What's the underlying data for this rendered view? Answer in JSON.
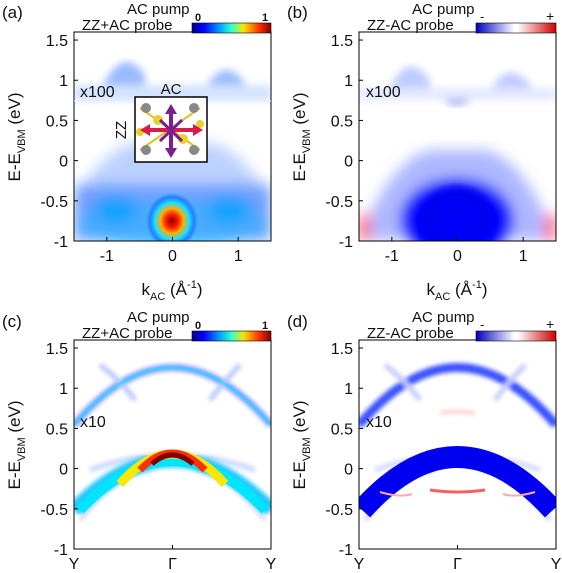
{
  "figure": {
    "panels": [
      {
        "id": "a",
        "label": "(a)",
        "title_line1": "AC pump",
        "title_line2": "ZZ+AC probe",
        "scale_type": "magnitude",
        "colorbar_min": "0",
        "colorbar_max": "1",
        "multiplier": "x100",
        "inset": {
          "ac_label": "AC",
          "zz_label": "ZZ"
        },
        "ylabel_main": "E-E",
        "ylabel_sub": "VBM",
        "ylabel_unit": " (eV)",
        "xlabel_main": "k",
        "xlabel_sub": "AC",
        "xlabel_unit_open": " (Å",
        "xlabel_unit_exp": "-1",
        "xlabel_unit_close": ")"
      },
      {
        "id": "b",
        "label": "(b)",
        "title_line1": "AC pump",
        "title_line2": "ZZ-AC probe",
        "scale_type": "difference",
        "colorbar_min": "-",
        "colorbar_max": "+",
        "multiplier": "x100",
        "ylabel_main": "E-E",
        "ylabel_sub": "VBM",
        "ylabel_unit": " (eV)",
        "xlabel_main": "k",
        "xlabel_sub": "AC",
        "xlabel_unit_open": " (Å",
        "xlabel_unit_exp": "-1",
        "xlabel_unit_close": ")"
      },
      {
        "id": "c",
        "label": "(c)",
        "title_line1": "AC pump",
        "title_line2": "ZZ+AC probe",
        "scale_type": "magnitude",
        "colorbar_min": "0",
        "colorbar_max": "1",
        "multiplier": "x10",
        "ylabel_main": "E-E",
        "ylabel_sub": "VBM",
        "ylabel_unit": " (eV)"
      },
      {
        "id": "d",
        "label": "(d)",
        "title_line1": "AC pump",
        "title_line2": "ZZ-AC probe",
        "scale_type": "difference",
        "colorbar_min": "-",
        "colorbar_max": "+",
        "multiplier": "x10",
        "ylabel_main": "E-E",
        "ylabel_sub": "VBM",
        "ylabel_unit": " (eV)"
      }
    ],
    "colors": {
      "jet_dark_blue": "#00008f",
      "jet_blue": "#0050ff",
      "jet_cyan": "#00d8ff",
      "jet_yellow": "#f8e800",
      "jet_red": "#e60000",
      "jet_dark_red": "#800000",
      "diff_blue": "#0000ee",
      "diff_red": "#ee2222",
      "arrow_red": "#d81b4a",
      "arrow_purple": "#7b1f8f"
    }
  },
  "chart_data": [
    {
      "panel": "a",
      "type": "heatmap",
      "x_ticks": [
        "-1",
        "0",
        "1"
      ],
      "x_values": [
        -1,
        0,
        1
      ],
      "xlim": [
        -1.5,
        1.5
      ],
      "y_ticks": [
        "-1",
        "-0.5",
        "0",
        "0.5",
        "1",
        "1.5"
      ],
      "y_values": [
        -1,
        -0.5,
        0,
        0.5,
        1,
        1.5
      ],
      "ylim": [
        -1,
        1.6
      ],
      "scaled_region_start": 0.78
    },
    {
      "panel": "b",
      "type": "heatmap",
      "x_ticks": [
        "-1",
        "0",
        "1"
      ],
      "x_values": [
        -1,
        0,
        1
      ],
      "xlim": [
        -1.5,
        1.5
      ],
      "y_ticks": [
        "-1",
        "-0.5",
        "0",
        "0.5",
        "1",
        "1.5"
      ],
      "y_values": [
        -1,
        -0.5,
        0,
        0.5,
        1,
        1.5
      ],
      "ylim": [
        -1,
        1.6
      ],
      "scaled_region_start": 0.78
    },
    {
      "panel": "c",
      "type": "heatmap",
      "x_ticks": [
        "Y",
        "Γ",
        "Y"
      ],
      "x_values": [
        -1,
        0,
        1
      ],
      "xlim": [
        -1,
        1
      ],
      "y_ticks": [
        "-1",
        "-0.5",
        "0",
        "0.5",
        "1",
        "1.5"
      ],
      "y_values": [
        -1,
        -0.5,
        0,
        0.5,
        1,
        1.5
      ],
      "ylim": [
        -1,
        1.6
      ]
    },
    {
      "panel": "d",
      "type": "heatmap",
      "x_ticks": [
        "Y",
        "Γ",
        "Y"
      ],
      "x_values": [
        -1,
        0,
        1
      ],
      "xlim": [
        -1,
        1
      ],
      "y_ticks": [
        "-1",
        "-0.5",
        "0",
        "0.5",
        "1",
        "1.5"
      ],
      "y_values": [
        -1,
        -0.5,
        0,
        0.5,
        1,
        1.5
      ],
      "ylim": [
        -1,
        1.6
      ]
    }
  ]
}
